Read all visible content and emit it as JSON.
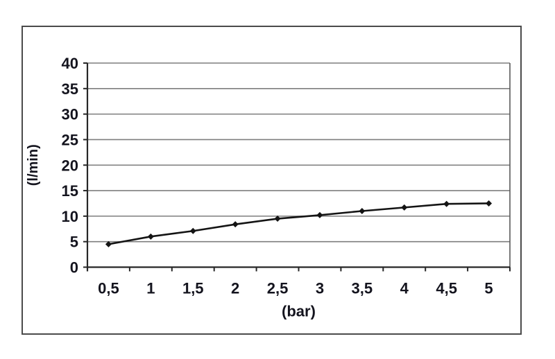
{
  "chart_data": {
    "type": "line",
    "title": "",
    "xlabel": "(bar)",
    "ylabel": "(l/min)",
    "categories": [
      "0,5",
      "1",
      "1,5",
      "2",
      "2,5",
      "3",
      "3,5",
      "4",
      "4,5",
      "5"
    ],
    "values": [
      4.5,
      6.0,
      7.1,
      8.4,
      9.5,
      10.2,
      11.0,
      11.7,
      12.4,
      12.5
    ],
    "y_ticks": [
      0,
      5,
      10,
      15,
      20,
      25,
      30,
      35,
      40
    ],
    "ylim": [
      0,
      40
    ],
    "grid": "horizontal",
    "legend_position": "none",
    "marker": "diamond",
    "colors": {
      "series_line": "#141414",
      "marker_fill": "#141414",
      "gridline": "#7d7d7d",
      "axis_line": "#262626",
      "plot_right_border": "#595959",
      "tick_text": "#14141e",
      "frame_border": "#4a4a4a",
      "background": "#ffffff"
    }
  }
}
